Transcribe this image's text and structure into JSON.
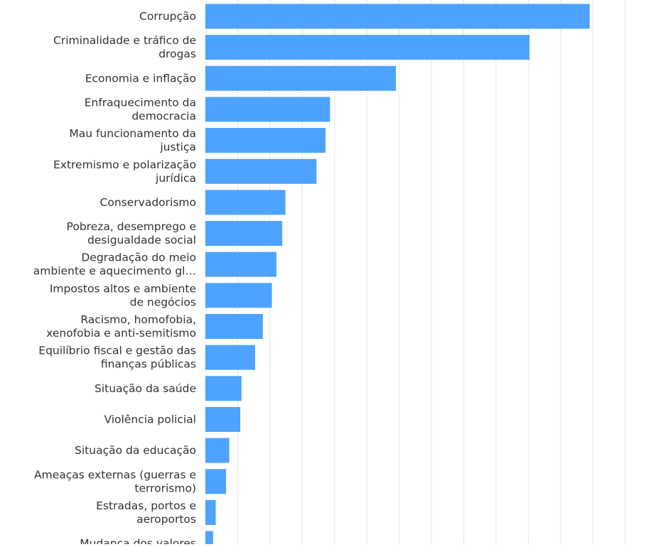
{
  "chart_data": {
    "type": "bar",
    "orientation": "horizontal",
    "title": "",
    "xlabel": "",
    "ylabel": "",
    "grid": true,
    "bar_color": "#4da3ff",
    "grid_color": "#e6e6e6",
    "text_color": "#333333",
    "categories": [
      "Corrupção",
      "Criminalidade e tráfico de drogas",
      "Economia e inflação",
      "Enfraquecimento da democracia",
      "Mau funcionamento da justiça",
      "Extremismo e polarização jurídica",
      "Conservadorismo",
      "Pobreza, desemprego e desigualdade social",
      "Degradação do meio ambiente e aquecimento gl…",
      "Impostos altos e ambiente de negócios",
      "Racismo, homofobia, xenofobia e anti-semitismo",
      "Equilíbrio fiscal e gestão das finanças públicas",
      "Situação da saúde",
      "Violência policial",
      "Situação da educação",
      "Ameaças externas (guerras e terrorismo)",
      "Estradas, portos e aeroportos",
      "Mudança dos valores"
    ],
    "category_lines": [
      [
        "Corrupção"
      ],
      [
        "Criminalidade e tráfico de",
        "drogas"
      ],
      [
        "Economia e inflação"
      ],
      [
        "Enfraquecimento da",
        "democracia"
      ],
      [
        "Mau funcionamento da",
        "justiça"
      ],
      [
        "Extremismo e polarização",
        "jurídica"
      ],
      [
        "Conservadorismo"
      ],
      [
        "Pobreza, desemprego e",
        "desigualdade social"
      ],
      [
        "Degradação do meio",
        "ambiente e aquecimento gl…"
      ],
      [
        "Impostos altos e ambiente",
        "de negócios"
      ],
      [
        "Racismo, homofobia,",
        "xenofobia e anti-semitismo"
      ],
      [
        "Equilíbrio fiscal e gestão das",
        "finanças públicas"
      ],
      [
        "Situação da saúde"
      ],
      [
        "Violência policial"
      ],
      [
        "Situação da educação"
      ],
      [
        "Ameaças externas (guerras e",
        "terrorismo)"
      ],
      [
        "Estradas, portos e",
        "aeroportos"
      ],
      [
        "Mudança dos valores"
      ]
    ],
    "values": [
      59.5,
      50.2,
      29.5,
      19.3,
      18.6,
      17.2,
      12.4,
      11.9,
      11.0,
      10.3,
      8.9,
      7.7,
      5.6,
      5.4,
      3.7,
      3.2,
      1.6,
      1.2
    ],
    "xlim": [
      0,
      68
    ],
    "grid_step": 5
  }
}
